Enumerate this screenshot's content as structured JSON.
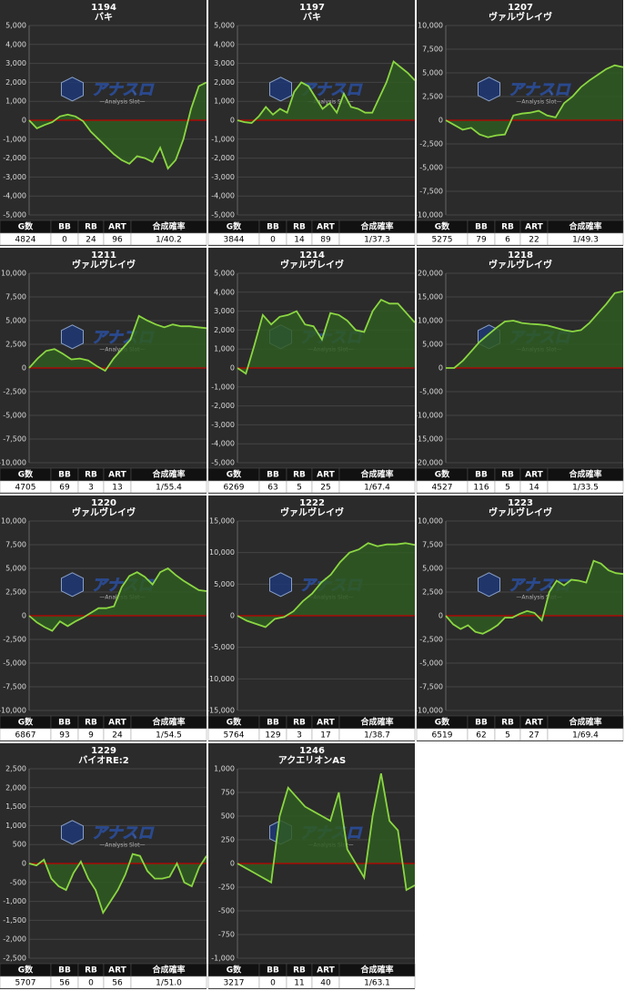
{
  "watermark": {
    "logo": "アナスロ",
    "tagline": "—Analysis Slot—"
  },
  "chart_data": [
    {
      "type": "line",
      "title": "1194",
      "subtitle": "バキ",
      "color": "#8bd742",
      "fill": "#2f5a22",
      "zero_line_color": "#c00000",
      "grid": true,
      "ylim": [
        -5000,
        5000
      ],
      "yticks": [
        {
          "value": -5000,
          "label": "-5,000"
        },
        {
          "value": -4000,
          "label": "-4,000"
        },
        {
          "value": -3000,
          "label": "-3,000"
        },
        {
          "value": -2000,
          "label": "-2,000"
        },
        {
          "value": -1000,
          "label": "-1,000"
        },
        0,
        {
          "value": 1000,
          "label": "1,000"
        },
        {
          "value": 2000,
          "label": "2,000"
        },
        {
          "value": 3000,
          "label": "3,000"
        },
        {
          "value": 4000,
          "label": "4,000"
        },
        {
          "value": 5000,
          "label": "5,000"
        }
      ],
      "values": [
        0,
        -430,
        -250,
        -100,
        200,
        300,
        200,
        -50,
        -600,
        -1000,
        -1400,
        -1800,
        -2100,
        -2300,
        -1900,
        -2000,
        -2200,
        -1450,
        -2550,
        -2100,
        -1000,
        600,
        1800,
        2000
      ],
      "stats": {
        "columns": [
          "G数",
          "BB",
          "RB",
          "ART",
          "合成確率"
        ],
        "values": [
          4824,
          0,
          24,
          96,
          "1/40.2"
        ]
      }
    },
    {
      "type": "line",
      "title": "1197",
      "subtitle": "バキ",
      "color": "#8bd742",
      "fill": "#2f5a22",
      "zero_line_color": "#c00000",
      "grid": true,
      "ylim": [
        -5000,
        5000
      ],
      "yticks": [
        {
          "value": -5000,
          "label": "-5,000"
        },
        {
          "value": -4000,
          "label": "-4,000"
        },
        {
          "value": -3000,
          "label": "-3,000"
        },
        {
          "value": -2000,
          "label": "-2,000"
        },
        {
          "value": -1000,
          "label": "-1,000"
        },
        0,
        {
          "value": 1000,
          "label": "1,000"
        },
        {
          "value": 2000,
          "label": "2,000"
        },
        {
          "value": 3000,
          "label": "3,000"
        },
        {
          "value": 4000,
          "label": "4,000"
        },
        {
          "value": 5000,
          "label": "5,000"
        }
      ],
      "values": [
        0,
        -100,
        -150,
        200,
        700,
        300,
        600,
        400,
        1500,
        2000,
        1800,
        1200,
        600,
        900,
        400,
        1400,
        700,
        600,
        400,
        400,
        1200,
        2000,
        3100,
        2800,
        2500,
        2100
      ],
      "stats": {
        "columns": [
          "G数",
          "BB",
          "RB",
          "ART",
          "合成確率"
        ],
        "values": [
          3844,
          0,
          14,
          89,
          "1/37.3"
        ]
      }
    },
    {
      "type": "line",
      "title": "1207",
      "subtitle": "ヴァルヴレイヴ",
      "color": "#8bd742",
      "fill": "#2f5a22",
      "zero_line_color": "#c00000",
      "grid": true,
      "ylim": [
        -10000,
        10000
      ],
      "yticks": [
        {
          "value": -10000,
          "label": "-10,000"
        },
        {
          "value": -7500,
          "label": "-7,500"
        },
        {
          "value": -5000,
          "label": "-5,000"
        },
        {
          "value": -2500,
          "label": "-2,500"
        },
        0,
        {
          "value": 2500,
          "label": "2,500"
        },
        {
          "value": 5000,
          "label": "5,000"
        },
        {
          "value": 7500,
          "label": "7,500"
        },
        {
          "value": 10000,
          "label": "10,000"
        }
      ],
      "values": [
        0,
        -500,
        -1000,
        -800,
        -1500,
        -1800,
        -1600,
        -1500,
        500,
        700,
        800,
        1000,
        500,
        300,
        1800,
        2500,
        3500,
        4200,
        4800,
        5400,
        5800,
        5600
      ],
      "stats": {
        "columns": [
          "G数",
          "BB",
          "RB",
          "ART",
          "合成確率"
        ],
        "values": [
          5275,
          79,
          6,
          22,
          "1/49.3"
        ]
      }
    },
    {
      "type": "line",
      "title": "1211",
      "subtitle": "ヴァルヴレイヴ",
      "color": "#8bd742",
      "fill": "#2f5a22",
      "zero_line_color": "#c00000",
      "grid": true,
      "ylim": [
        -10000,
        10000
      ],
      "yticks": [
        {
          "value": -10000,
          "label": "-10,000"
        },
        {
          "value": -7500,
          "label": "-7,500"
        },
        {
          "value": -5000,
          "label": "-5,000"
        },
        {
          "value": -2500,
          "label": "-2,500"
        },
        0,
        {
          "value": 2500,
          "label": "2,500"
        },
        {
          "value": 5000,
          "label": "5,000"
        },
        {
          "value": 7500,
          "label": "7,500"
        },
        {
          "value": 10000,
          "label": "10,000"
        }
      ],
      "values": [
        0,
        1000,
        1800,
        2000,
        1500,
        900,
        1000,
        800,
        200,
        -300,
        1000,
        2000,
        3000,
        5500,
        5000,
        4600,
        4300,
        4600,
        4400,
        4400,
        4300,
        4200
      ],
      "stats": {
        "columns": [
          "G数",
          "BB",
          "RB",
          "ART",
          "合成確率"
        ],
        "values": [
          4705,
          69,
          3,
          13,
          "1/55.4"
        ]
      }
    },
    {
      "type": "line",
      "title": "1214",
      "subtitle": "ヴァルヴレイヴ",
      "color": "#8bd742",
      "fill": "#2f5a22",
      "zero_line_color": "#c00000",
      "grid": true,
      "ylim": [
        -5000,
        5000
      ],
      "yticks": [
        {
          "value": -5000,
          "label": "-5,000"
        },
        {
          "value": -4000,
          "label": "-4,000"
        },
        {
          "value": -3000,
          "label": "-3,000"
        },
        {
          "value": -2000,
          "label": "-2,000"
        },
        {
          "value": -1000,
          "label": "-1,000"
        },
        0,
        {
          "value": 1000,
          "label": "1,000"
        },
        {
          "value": 2000,
          "label": "2,000"
        },
        {
          "value": 3000,
          "label": "3,000"
        },
        {
          "value": 4000,
          "label": "4,000"
        },
        {
          "value": 5000,
          "label": "5,000"
        }
      ],
      "values": [
        0,
        -300,
        1200,
        2800,
        2300,
        2700,
        2800,
        3000,
        2300,
        2200,
        1500,
        2900,
        2800,
        2500,
        2000,
        1900,
        3000,
        3600,
        3400,
        3400,
        2900,
        2400
      ],
      "stats": {
        "columns": [
          "G数",
          "BB",
          "RB",
          "ART",
          "合成確率"
        ],
        "values": [
          6269,
          63,
          5,
          25,
          "1/67.4"
        ]
      }
    },
    {
      "type": "line",
      "title": "1218",
      "subtitle": "ヴァルヴレイヴ",
      "color": "#8bd742",
      "fill": "#2f5a22",
      "zero_line_color": "#c00000",
      "grid": true,
      "ylim": [
        -20000,
        20000
      ],
      "yticks": [
        {
          "value": -20000,
          "label": "-20,000"
        },
        {
          "value": -15000,
          "label": "-15,000"
        },
        {
          "value": -10000,
          "label": "-10,000"
        },
        {
          "value": -5000,
          "label": "-5,000"
        },
        0,
        {
          "value": 5000,
          "label": "5,000"
        },
        {
          "value": 10000,
          "label": "10,000"
        },
        {
          "value": 15000,
          "label": "15,000"
        },
        {
          "value": 20000,
          "label": "20,000"
        }
      ],
      "values": [
        0,
        0,
        1500,
        3500,
        5500,
        7000,
        8500,
        9800,
        10000,
        9500,
        9300,
        9200,
        9000,
        8500,
        8000,
        7700,
        8000,
        9500,
        11500,
        13500,
        15800,
        16200
      ],
      "stats": {
        "columns": [
          "G数",
          "BB",
          "RB",
          "ART",
          "合成確率"
        ],
        "values": [
          4527,
          116,
          5,
          14,
          "1/33.5"
        ]
      }
    },
    {
      "type": "line",
      "title": "1220",
      "subtitle": "ヴァルヴレイヴ",
      "color": "#8bd742",
      "fill": "#2f5a22",
      "zero_line_color": "#c00000",
      "grid": true,
      "ylim": [
        -10000,
        10000
      ],
      "yticks": [
        {
          "value": -10000,
          "label": "-10,000"
        },
        {
          "value": -7500,
          "label": "-7,500"
        },
        {
          "value": -5000,
          "label": "-5,000"
        },
        {
          "value": -2500,
          "label": "-2,500"
        },
        0,
        {
          "value": 2500,
          "label": "2,500"
        },
        {
          "value": 5000,
          "label": "5,000"
        },
        {
          "value": 7500,
          "label": "7,500"
        },
        {
          "value": 10000,
          "label": "10,000"
        }
      ],
      "values": [
        0,
        -700,
        -1200,
        -1600,
        -600,
        -1100,
        -600,
        -200,
        300,
        800,
        800,
        1000,
        3000,
        4200,
        4600,
        4100,
        3300,
        4600,
        5000,
        4300,
        3700,
        3200,
        2700,
        2600
      ],
      "stats": {
        "columns": [
          "G数",
          "BB",
          "RB",
          "ART",
          "合成確率"
        ],
        "values": [
          6867,
          93,
          9,
          24,
          "1/54.5"
        ]
      }
    },
    {
      "type": "line",
      "title": "1222",
      "subtitle": "ヴァルヴレイヴ",
      "color": "#8bd742",
      "fill": "#2f5a22",
      "zero_line_color": "#c00000",
      "grid": true,
      "ylim": [
        -15000,
        15000
      ],
      "yticks": [
        {
          "value": -15000,
          "label": "-15,000"
        },
        {
          "value": -10000,
          "label": "-10,000"
        },
        {
          "value": -5000,
          "label": "-5,000"
        },
        0,
        {
          "value": 5000,
          "label": "5,000"
        },
        {
          "value": 10000,
          "label": "10,000"
        },
        {
          "value": 15000,
          "label": "15,000"
        }
      ],
      "values": [
        0,
        -800,
        -1300,
        -1800,
        -500,
        -200,
        700,
        2300,
        3500,
        5300,
        6500,
        8500,
        10000,
        10500,
        11500,
        11000,
        11300,
        11300,
        11500,
        11200
      ],
      "stats": {
        "columns": [
          "G数",
          "BB",
          "RB",
          "ART",
          "合成確率"
        ],
        "values": [
          5764,
          129,
          3,
          17,
          "1/38.7"
        ]
      }
    },
    {
      "type": "line",
      "title": "1223",
      "subtitle": "ヴァルヴレイヴ",
      "color": "#8bd742",
      "fill": "#2f5a22",
      "zero_line_color": "#c00000",
      "grid": true,
      "ylim": [
        -10000,
        10000
      ],
      "yticks": [
        {
          "value": -10000,
          "label": "-10,000"
        },
        {
          "value": -7500,
          "label": "-7,500"
        },
        {
          "value": -5000,
          "label": "-5,000"
        },
        {
          "value": -2500,
          "label": "-2,500"
        },
        0,
        {
          "value": 2500,
          "label": "2,500"
        },
        {
          "value": 5000,
          "label": "5,000"
        },
        {
          "value": 7500,
          "label": "7,500"
        },
        {
          "value": 10000,
          "label": "10,000"
        }
      ],
      "values": [
        0,
        -900,
        -1400,
        -1000,
        -1700,
        -1900,
        -1500,
        -1000,
        -200,
        -200,
        200,
        500,
        300,
        -500,
        2500,
        3700,
        3200,
        3800,
        3700,
        3500,
        5800,
        5500,
        4800,
        4500,
        4400
      ],
      "stats": {
        "columns": [
          "G数",
          "BB",
          "RB",
          "ART",
          "合成確率"
        ],
        "values": [
          6519,
          62,
          5,
          27,
          "1/69.4"
        ]
      }
    },
    {
      "type": "line",
      "title": "1229",
      "subtitle": "バイオRE:2",
      "color": "#8bd742",
      "fill": "#2f5a22",
      "zero_line_color": "#c00000",
      "grid": true,
      "ylim": [
        -2500,
        2500
      ],
      "yticks": [
        {
          "value": -2500,
          "label": "-2,500"
        },
        {
          "value": -2000,
          "label": "-2,000"
        },
        {
          "value": -1500,
          "label": "-1,500"
        },
        {
          "value": -1000,
          "label": "-1,000"
        },
        -500,
        0,
        500,
        {
          "value": 1000,
          "label": "1,000"
        },
        {
          "value": 1500,
          "label": "1,500"
        },
        {
          "value": 2000,
          "label": "2,000"
        },
        {
          "value": 2500,
          "label": "2,500"
        }
      ],
      "values": [
        0,
        -50,
        100,
        -400,
        -600,
        -700,
        -250,
        50,
        -400,
        -700,
        -1300,
        -1000,
        -700,
        -300,
        250,
        200,
        -200,
        -400,
        -400,
        -350,
        0,
        -500,
        -600,
        -100,
        200
      ],
      "stats": {
        "columns": [
          "G数",
          "BB",
          "RB",
          "ART",
          "合成確率"
        ],
        "values": [
          5707,
          56,
          0,
          56,
          "1/51.0"
        ]
      }
    },
    {
      "type": "line",
      "title": "1246",
      "subtitle": "アクエリオンAS",
      "color": "#8bd742",
      "fill": "#2f5a22",
      "zero_line_color": "#c00000",
      "grid": true,
      "ylim": [
        -1000,
        1000
      ],
      "yticks": [
        {
          "value": -1000,
          "label": "-1,000"
        },
        -750,
        -500,
        -250,
        0,
        250,
        500,
        750,
        {
          "value": 1000,
          "label": "1,000"
        }
      ],
      "values": [
        0,
        -50,
        -100,
        -150,
        -200,
        500,
        800,
        700,
        600,
        550,
        500,
        450,
        750,
        150,
        0,
        -150,
        500,
        950,
        450,
        350,
        -280,
        -230
      ],
      "stats": {
        "columns": [
          "G数",
          "BB",
          "RB",
          "ART",
          "合成確率"
        ],
        "values": [
          3217,
          0,
          11,
          40,
          "1/63.1"
        ]
      }
    }
  ]
}
